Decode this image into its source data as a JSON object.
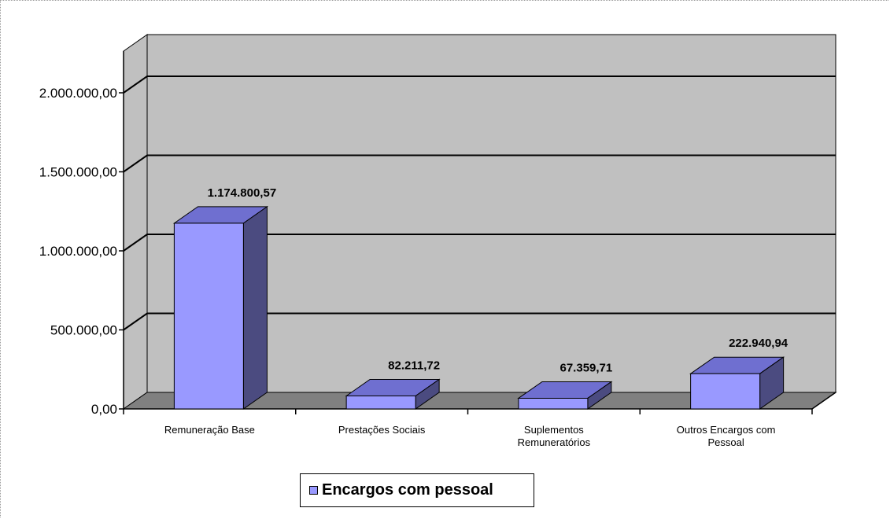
{
  "chart_data": {
    "type": "bar",
    "categories": [
      "Remuneração Base",
      "Prestações Sociais",
      "Suplementos Remuneratórios",
      "Outros Encargos com Pessoal"
    ],
    "category_label_lines": [
      [
        "Remuneração Base"
      ],
      [
        "Prestações Sociais"
      ],
      [
        "Suplementos",
        "Remuneratórios"
      ],
      [
        "Outros Encargos com",
        "Pessoal"
      ]
    ],
    "series": [
      {
        "name": "Encargos com pessoal",
        "values": [
          1174800.57,
          82211.72,
          67359.71,
          222940.94
        ],
        "value_labels": [
          "1.174.800,57",
          "82.211,72",
          "67.359,71",
          "222.940,94"
        ]
      }
    ],
    "yticks": [
      {
        "value": 0,
        "label": "0,00"
      },
      {
        "value": 500000,
        "label": "500.000,00"
      },
      {
        "value": 1000000,
        "label": "1.000.000,00"
      },
      {
        "value": 1500000,
        "label": "1.500.000,00"
      },
      {
        "value": 2000000,
        "label": "2.000.000,00"
      }
    ],
    "ylim": [
      0,
      2000000
    ],
    "grid": true,
    "three_d": true,
    "legend_position": "bottom",
    "colors": {
      "bar_front": "#9999ff",
      "bar_top": "#6f6fd0",
      "bar_side": "#4b4b80",
      "wall": "#c0c0c0",
      "floor": "#808080"
    }
  }
}
